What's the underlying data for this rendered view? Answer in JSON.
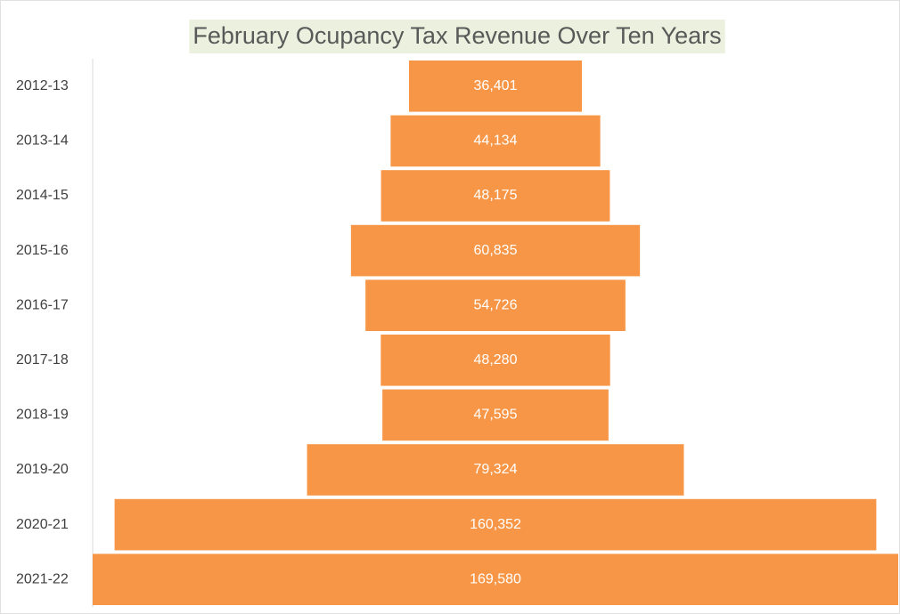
{
  "chart_data": {
    "type": "funnel",
    "title": "February Ocupancy Tax Revenue Over Ten Years",
    "categories": [
      "2012-13",
      "2013-14",
      "2014-15",
      "2015-16",
      "2016-17",
      "2017-18",
      "2018-19",
      "2019-20",
      "2020-21",
      "2021-22"
    ],
    "values": [
      36401,
      44134,
      48175,
      60835,
      54726,
      48280,
      47595,
      79324,
      160352,
      169580
    ],
    "value_labels": [
      "36,401",
      "44,134",
      "48,175",
      "60,835",
      "54,726",
      "48,280",
      "47,595",
      "79,324",
      "160,352",
      "169,580"
    ],
    "color": "#f79646"
  }
}
